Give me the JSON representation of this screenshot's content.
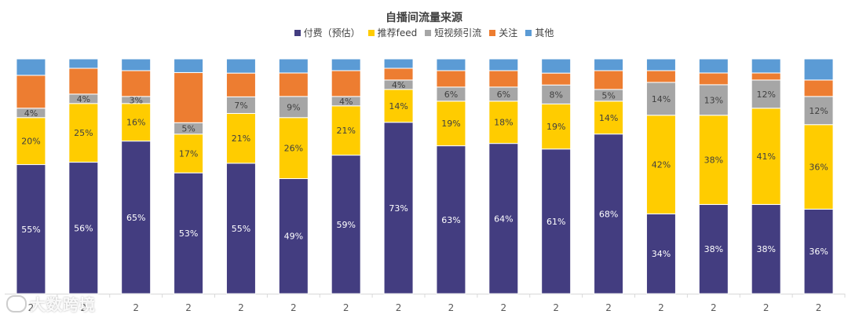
{
  "chart_data": {
    "type": "bar",
    "stacked": true,
    "normalized": true,
    "title": "自播间流量来源",
    "legend_position": "top",
    "grid": false,
    "categories": [
      "2",
      "2",
      "2",
      "2",
      "2",
      "2",
      "2",
      "2",
      "2",
      "2",
      "2",
      "2",
      "2",
      "2",
      "2",
      "2"
    ],
    "series": [
      {
        "name": "付费（预估）",
        "color": "#433d80",
        "values": [
          55,
          56,
          65,
          53,
          55,
          49,
          59,
          73,
          63,
          64,
          61,
          68,
          34,
          38,
          38,
          36
        ],
        "labels": [
          "55%",
          "56%",
          "65%",
          "53%",
          "55%",
          "49%",
          "59%",
          "73%",
          "63%",
          "64%",
          "61%",
          "68%",
          "34%",
          "38%",
          "38%",
          "36%"
        ]
      },
      {
        "name": "推荐feed",
        "color": "#ffcc00",
        "values": [
          20,
          25,
          16,
          17,
          21,
          26,
          21,
          14,
          19,
          18,
          19,
          14,
          42,
          38,
          41,
          36
        ],
        "labels": [
          "20%",
          "25%",
          "16%",
          "17%",
          "21%",
          "26%",
          "21%",
          "14%",
          "19%",
          "18%",
          "19%",
          "14%",
          "42%",
          "38%",
          "41%",
          "36%"
        ]
      },
      {
        "name": "短视频引流",
        "color": "#a6a6a6",
        "values": [
          4,
          4,
          3,
          5,
          7,
          9,
          4,
          4,
          6,
          6,
          8,
          5,
          14,
          13,
          12,
          12
        ],
        "labels": [
          "4%",
          "4%",
          "3%",
          "5%",
          "7%",
          "9%",
          "4%",
          "4%",
          "6%",
          "6%",
          "8%",
          "5%",
          "14%",
          "13%",
          "12%",
          "12%"
        ]
      },
      {
        "name": "关注",
        "color": "#ed7d31",
        "values": [
          14,
          11,
          11,
          22,
          10,
          10,
          11,
          5,
          7,
          7,
          5,
          8,
          5,
          5,
          3,
          7
        ],
        "labels": [
          "",
          "",
          "",
          "",
          "",
          "",
          "",
          "",
          "",
          "",
          "",
          "",
          "",
          "",
          "",
          ""
        ]
      },
      {
        "name": "其他",
        "color": "#5b9bd5",
        "values": [
          7,
          4,
          5,
          6,
          6,
          6,
          5,
          4,
          5,
          5,
          6,
          5,
          5,
          6,
          6,
          9
        ],
        "labels": [
          "",
          "",
          "",
          "",
          "",
          "",
          "",
          "",
          "",
          "",
          "",
          "",
          "",
          "",
          "",
          ""
        ]
      }
    ]
  },
  "watermark": "大数跨境",
  "colors": {
    "label_dark": "#ffffff",
    "label_light": "#404040",
    "axis": "#d9d9d9"
  }
}
